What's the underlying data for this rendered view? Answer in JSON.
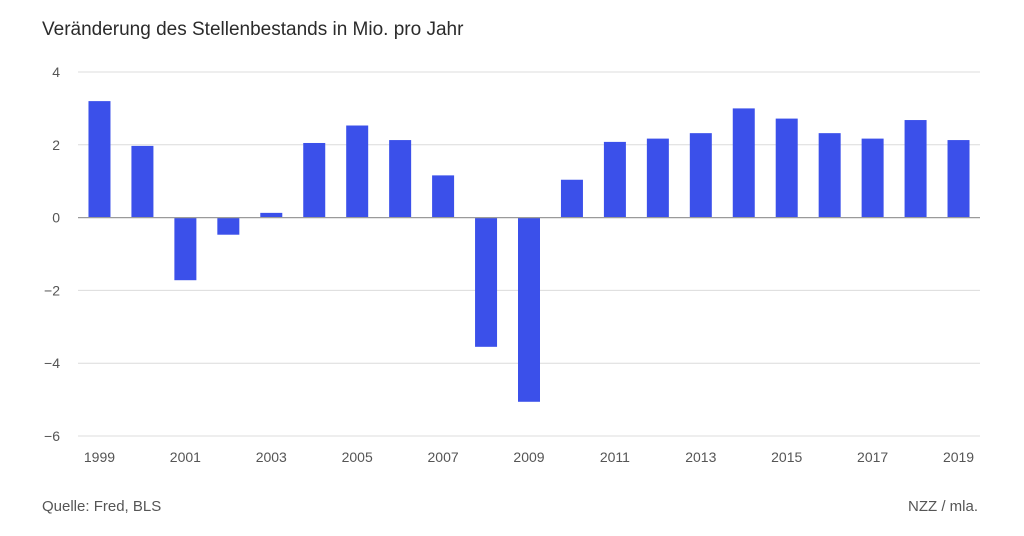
{
  "header": {
    "title": "Veränderung des Stellenbestands in Mio. pro Jahr"
  },
  "footer": {
    "source": "Quelle: Fred, BLS",
    "credit": "NZZ / mla."
  },
  "colors": {
    "bar": "#3b50ea",
    "grid": "#dcdcdc",
    "zero": "#9a9a9a"
  },
  "chart_data": {
    "type": "bar",
    "title": "Veränderung des Stellenbestands in Mio. pro Jahr",
    "xlabel": "",
    "ylabel": "",
    "categories": [
      "1999",
      "2000",
      "2001",
      "2002",
      "2003",
      "2004",
      "2005",
      "2006",
      "2007",
      "2008",
      "2009",
      "2010",
      "2011",
      "2012",
      "2013",
      "2014",
      "2015",
      "2016",
      "2017",
      "2018",
      "2019"
    ],
    "values": [
      3.2,
      1.97,
      -1.72,
      -0.47,
      0.13,
      2.05,
      2.53,
      2.13,
      1.16,
      -3.55,
      -5.06,
      1.04,
      2.08,
      2.17,
      2.32,
      3.0,
      2.72,
      2.32,
      2.17,
      2.68,
      2.13
    ],
    "ylim": [
      -6,
      4
    ],
    "yticks": [
      "4",
      "2",
      "0",
      "−2",
      "−4",
      "−6"
    ],
    "ytick_values": [
      4,
      2,
      0,
      -2,
      -4,
      -6
    ],
    "xtick_labels": [
      "1999",
      "2001",
      "2003",
      "2005",
      "2007",
      "2009",
      "2011",
      "2013",
      "2015",
      "2017",
      "2019"
    ],
    "grid": true
  }
}
